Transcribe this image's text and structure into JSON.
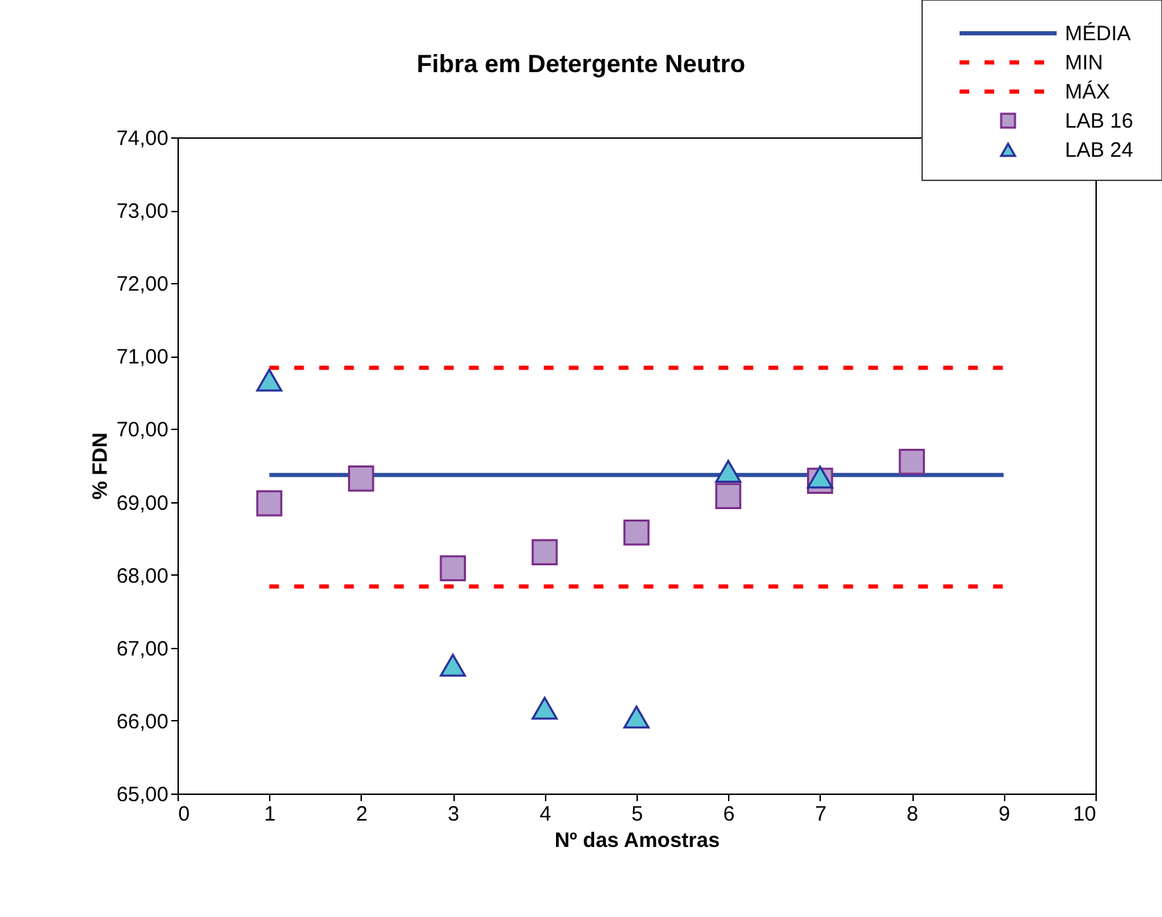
{
  "chart_data": {
    "type": "scatter",
    "title": "Fibra em Detergente Neutro",
    "xlabel": "Nº das Amostras",
    "ylabel": "% FDN",
    "series": [
      {
        "name": "MÉDIA",
        "type": "line",
        "color": "#2e4fa0",
        "line_style": "solid",
        "marker": "none",
        "x": [
          1,
          9
        ],
        "values": [
          69.37,
          69.37
        ]
      },
      {
        "name": "MIN",
        "type": "line",
        "color": "#ff0000",
        "line_style": "dotted",
        "marker": "none",
        "x": [
          1,
          9
        ],
        "values": [
          67.84,
          67.84
        ]
      },
      {
        "name": "MÁX",
        "type": "line",
        "color": "#ff0000",
        "line_style": "dotted",
        "marker": "none",
        "x": [
          1,
          9
        ],
        "values": [
          70.84,
          70.84
        ]
      },
      {
        "name": "LAB 16",
        "color": "#b79ccb",
        "marker": "square",
        "x": [
          1,
          2,
          3,
          4,
          5,
          6,
          7,
          8
        ],
        "values": [
          68.98,
          69.32,
          68.09,
          68.31,
          68.58,
          69.08,
          69.29,
          69.55
        ]
      },
      {
        "name": "LAB 24",
        "color": "#5bc5d5",
        "marker": "triangle",
        "x": [
          1,
          3,
          4,
          5,
          6,
          7
        ],
        "values": [
          70.67,
          66.76,
          66.17,
          66.05,
          69.42,
          69.34
        ]
      }
    ],
    "xlim": [
      0,
      10
    ],
    "xticks": [
      0,
      1,
      2,
      3,
      4,
      5,
      6,
      7,
      8,
      9,
      10
    ],
    "ylim": [
      65,
      74
    ],
    "yticks": [
      {
        "value": 65,
        "label": "65,00"
      },
      {
        "value": 66,
        "label": "66,00"
      },
      {
        "value": 67,
        "label": "67,00"
      },
      {
        "value": 68,
        "label": "68,00"
      },
      {
        "value": 69,
        "label": "69,00"
      },
      {
        "value": 70,
        "label": "70,00"
      },
      {
        "value": 71,
        "label": "71,00"
      },
      {
        "value": 72,
        "label": "72,00"
      },
      {
        "value": 73,
        "label": "73,00"
      },
      {
        "value": 74,
        "label": "74,00"
      }
    ],
    "grid": false,
    "legend": "top right"
  }
}
